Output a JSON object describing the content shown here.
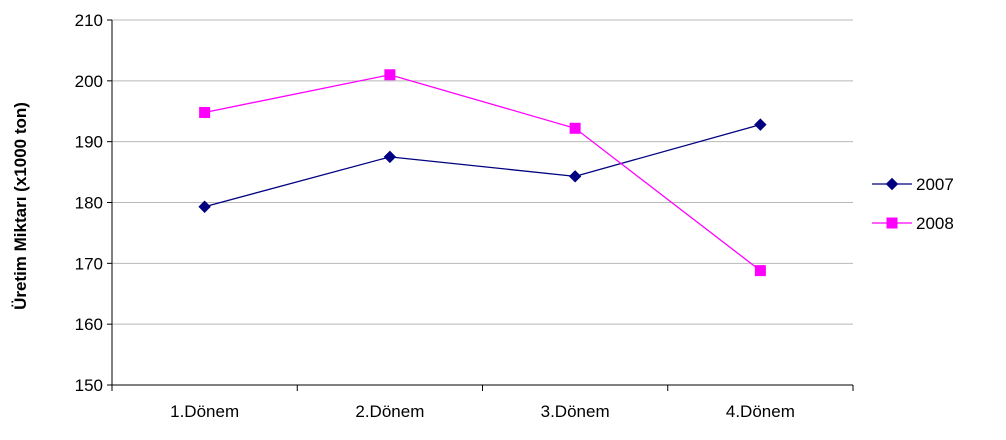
{
  "chart_data": {
    "type": "line",
    "title": "",
    "xlabel": "",
    "ylabel": "Üretim Miktarı (x1000 ton)",
    "categories": [
      "1.Dönem",
      "2.Dönem",
      "3.Dönem",
      "4.Dönem"
    ],
    "ylim": [
      150,
      210
    ],
    "yticks": [
      150,
      160,
      170,
      180,
      190,
      200,
      210
    ],
    "grid": true,
    "legend_position": "right",
    "series": [
      {
        "name": "2007",
        "values": [
          179.3,
          187.5,
          184.3,
          192.8
        ],
        "color": "#000080",
        "marker": "diamond"
      },
      {
        "name": "2008",
        "values": [
          194.8,
          201.0,
          192.2,
          168.8
        ],
        "color": "#FF00FF",
        "marker": "square"
      }
    ]
  }
}
